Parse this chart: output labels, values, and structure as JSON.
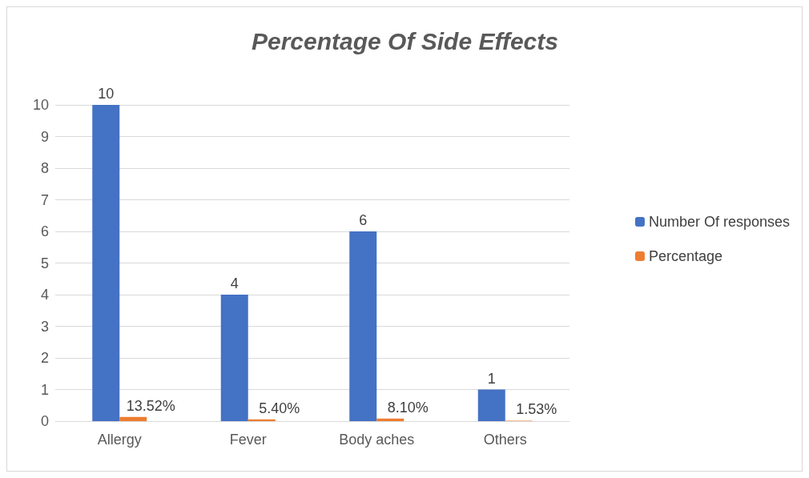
{
  "chart_data": {
    "type": "bar",
    "title": "Percentage Of Side Effects",
    "categories": [
      "Allergy",
      "Fever",
      "Body aches",
      "Others"
    ],
    "series": [
      {
        "name": "Number Of responses",
        "color": "#4472c4",
        "values": [
          10,
          4,
          6,
          1
        ]
      },
      {
        "name": "Percentage",
        "color": "#ed7d31",
        "values": [
          0.1352,
          0.054,
          0.081,
          0.0153
        ],
        "value_labels": [
          "13.52%",
          "5.40%",
          "8.10%",
          "1.53%"
        ]
      }
    ],
    "ylim": [
      0,
      10
    ],
    "yticks": [
      0,
      1,
      2,
      3,
      4,
      5,
      6,
      7,
      8,
      9,
      10
    ],
    "grid": "y",
    "legend": "right",
    "data_labels": true
  }
}
